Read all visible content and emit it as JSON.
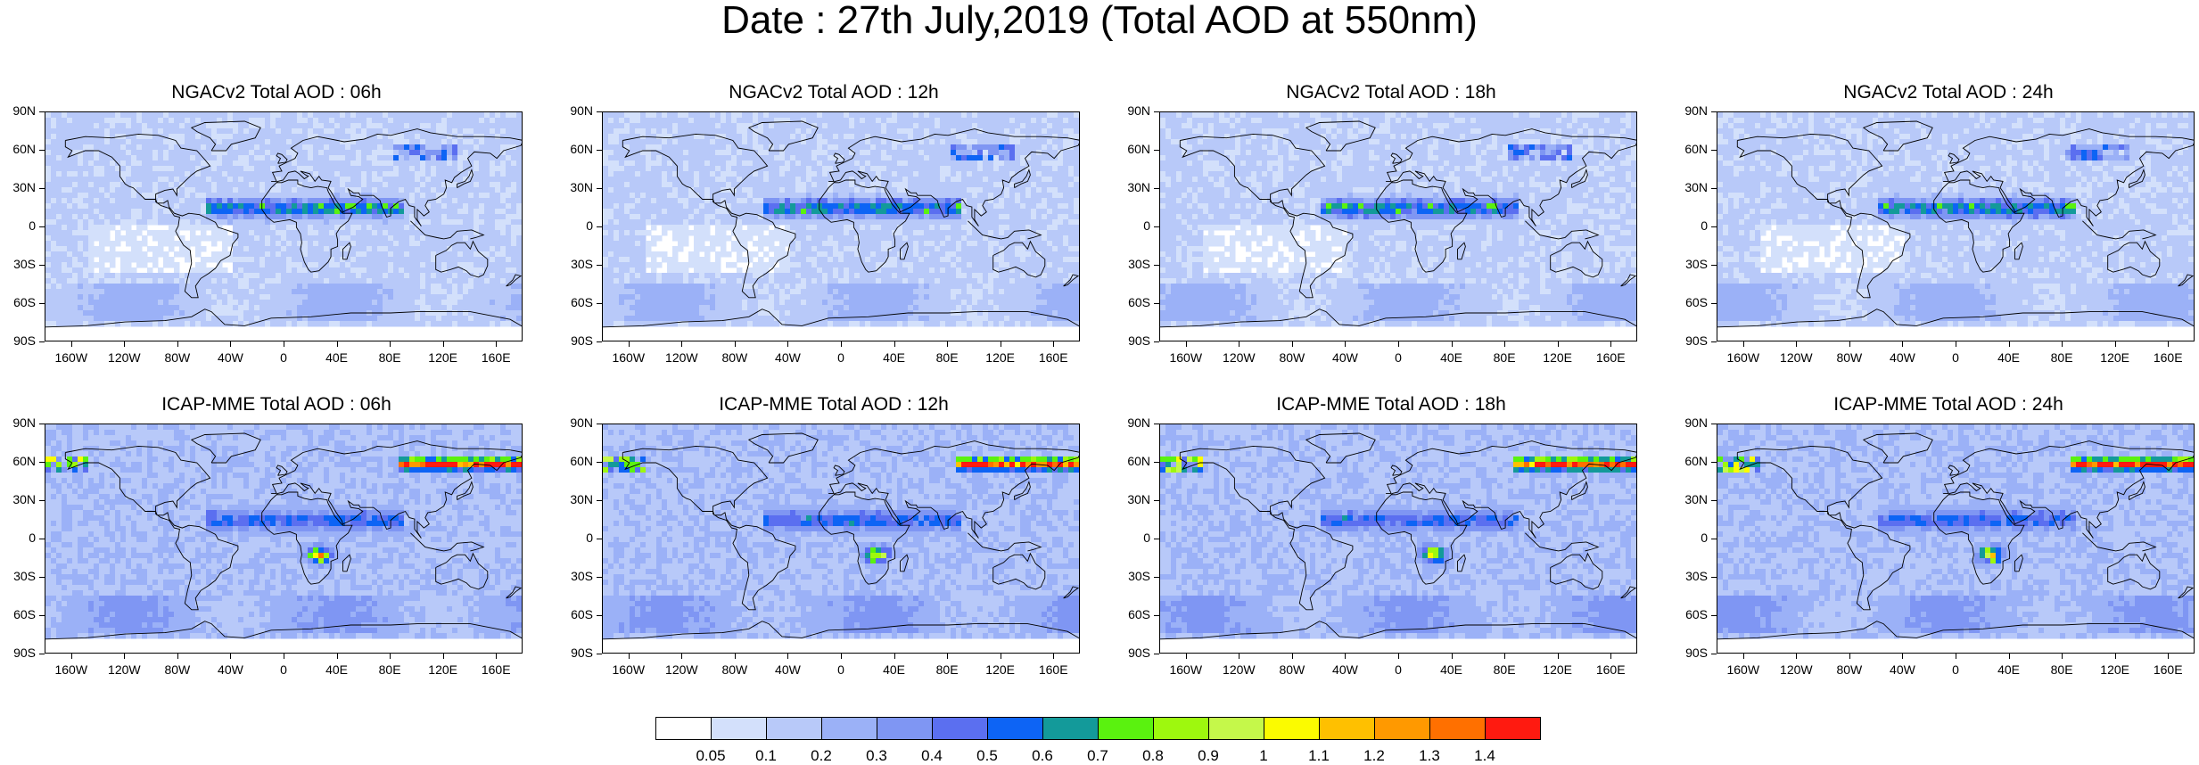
{
  "title": "Date : 27th July,2019 (Total AOD at 550nm)",
  "lat_ticks": [
    "90N",
    "60N",
    "30N",
    "0",
    "30S",
    "60S",
    "90S"
  ],
  "lon_ticks": [
    "160W",
    "120W",
    "80W",
    "40W",
    "0",
    "40E",
    "80E",
    "120E",
    "160E"
  ],
  "panels": [
    {
      "title": "NGACv2 Total AOD : 06h",
      "model": "NGACv2",
      "hour": "06h"
    },
    {
      "title": "NGACv2 Total AOD : 12h",
      "model": "NGACv2",
      "hour": "12h"
    },
    {
      "title": "NGACv2 Total AOD : 18h",
      "model": "NGACv2",
      "hour": "18h"
    },
    {
      "title": "NGACv2 Total AOD : 24h",
      "model": "NGACv2",
      "hour": "24h"
    },
    {
      "title": "ICAP-MME Total AOD : 06h",
      "model": "ICAP-MME",
      "hour": "06h"
    },
    {
      "title": "ICAP-MME Total AOD : 12h",
      "model": "ICAP-MME",
      "hour": "12h"
    },
    {
      "title": "ICAP-MME Total AOD : 18h",
      "model": "ICAP-MME",
      "hour": "18h"
    },
    {
      "title": "ICAP-MME Total AOD : 24h",
      "model": "ICAP-MME",
      "hour": "24h"
    }
  ],
  "colorbar": {
    "labels": [
      "0.05",
      "0.1",
      "0.2",
      "0.3",
      "0.4",
      "0.5",
      "0.6",
      "0.7",
      "0.8",
      "0.9",
      "1",
      "1.1",
      "1.2",
      "1.3",
      "1.4"
    ],
    "colors": [
      "#ffffff",
      "#d3e0fb",
      "#b8c9f9",
      "#9bb1f7",
      "#7f96f3",
      "#5b6ff0",
      "#0d64f5",
      "#139a9a",
      "#5af20f",
      "#9ef80e",
      "#c5f84a",
      "#fbfb00",
      "#ffc000",
      "#ff9900",
      "#ff7000",
      "#ff1a10"
    ]
  }
}
